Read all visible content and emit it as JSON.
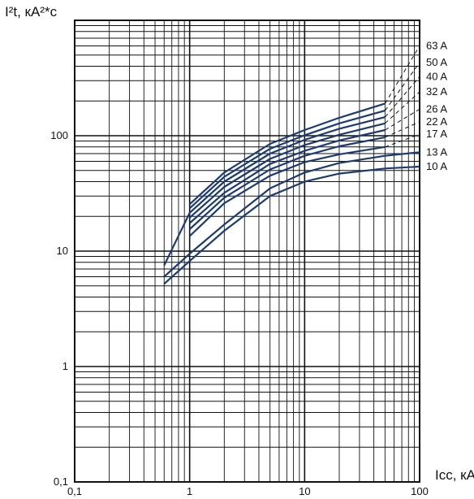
{
  "chart_data": {
    "type": "line",
    "title": "",
    "xlabel": "Icc, кА",
    "ylabel": "I²t, кА²*с",
    "x_scale": "log",
    "y_scale": "log",
    "xlim": [
      0.1,
      100
    ],
    "ylim": [
      0.1,
      1000
    ],
    "grid": true,
    "x_ticks": [
      {
        "value": 0.1,
        "label": "0,1"
      },
      {
        "value": 1,
        "label": "1"
      },
      {
        "value": 10,
        "label": "10"
      },
      {
        "value": 100,
        "label": "100"
      }
    ],
    "y_ticks": [
      {
        "value": 0.1,
        "label": "0,1"
      },
      {
        "value": 1,
        "label": "1"
      },
      {
        "value": 10,
        "label": "10"
      },
      {
        "value": 100,
        "label": "100"
      }
    ],
    "line_color": "#1a3a78",
    "extrapolation_style": "dashed",
    "series": [
      {
        "name": "10 A",
        "points": [
          [
            0.6,
            5.2
          ],
          [
            1,
            8.2
          ],
          [
            2,
            15
          ],
          [
            5,
            30
          ],
          [
            10,
            40
          ],
          [
            20,
            47
          ],
          [
            50,
            52
          ],
          [
            100,
            54
          ]
        ]
      },
      {
        "name": "13 A",
        "points": [
          [
            0.6,
            6.0
          ],
          [
            1,
            9.5
          ],
          [
            2,
            17
          ],
          [
            5,
            35
          ],
          [
            10,
            48
          ],
          [
            20,
            58
          ],
          [
            50,
            67
          ],
          [
            100,
            72
          ]
        ]
      },
      {
        "name": "17 A",
        "points": [
          [
            1,
            13.5
          ],
          [
            2,
            26
          ],
          [
            5,
            45
          ],
          [
            10,
            59
          ],
          [
            20,
            69
          ],
          [
            50,
            80
          ]
        ],
        "dashed_to": [
          [
            50,
            80
          ],
          [
            100,
            103
          ]
        ]
      },
      {
        "name": "22 A",
        "points": [
          [
            1,
            15.5
          ],
          [
            2,
            29
          ],
          [
            5,
            51
          ],
          [
            10,
            67
          ],
          [
            20,
            81
          ],
          [
            50,
            97
          ]
        ],
        "dashed_to": [
          [
            50,
            97
          ],
          [
            100,
            132
          ]
        ]
      },
      {
        "name": "26 A",
        "points": [
          [
            1,
            17.5
          ],
          [
            2,
            32
          ],
          [
            5,
            57
          ],
          [
            10,
            74
          ],
          [
            20,
            91
          ],
          [
            50,
            112
          ]
        ],
        "dashed_to": [
          [
            50,
            112
          ],
          [
            100,
            170
          ]
        ]
      },
      {
        "name": "32 A",
        "points": [
          [
            1,
            19.5
          ],
          [
            2,
            36
          ],
          [
            5,
            63
          ],
          [
            10,
            83
          ],
          [
            20,
            102
          ],
          [
            50,
            128
          ]
        ],
        "dashed_to": [
          [
            50,
            128
          ],
          [
            100,
            240
          ]
        ]
      },
      {
        "name": "40 A",
        "points": [
          [
            0.6,
            7.5
          ],
          [
            1,
            21.5
          ],
          [
            2,
            40
          ],
          [
            5,
            70
          ],
          [
            10,
            92
          ],
          [
            20,
            115
          ],
          [
            50,
            145
          ]
        ],
        "dashed_to": [
          [
            50,
            145
          ],
          [
            100,
            325
          ]
        ]
      },
      {
        "name": "50 A",
        "points": [
          [
            1,
            23.5
          ],
          [
            2,
            44
          ],
          [
            5,
            77
          ],
          [
            10,
            101
          ],
          [
            20,
            128
          ],
          [
            50,
            165
          ]
        ],
        "dashed_to": [
          [
            50,
            165
          ],
          [
            100,
            430
          ]
        ]
      },
      {
        "name": "63 A",
        "points": [
          [
            1,
            25.5
          ],
          [
            2,
            48
          ],
          [
            5,
            85
          ],
          [
            10,
            112
          ],
          [
            20,
            143
          ],
          [
            50,
            190
          ]
        ],
        "dashed_to": [
          [
            50,
            190
          ],
          [
            100,
            600
          ]
        ]
      }
    ]
  }
}
